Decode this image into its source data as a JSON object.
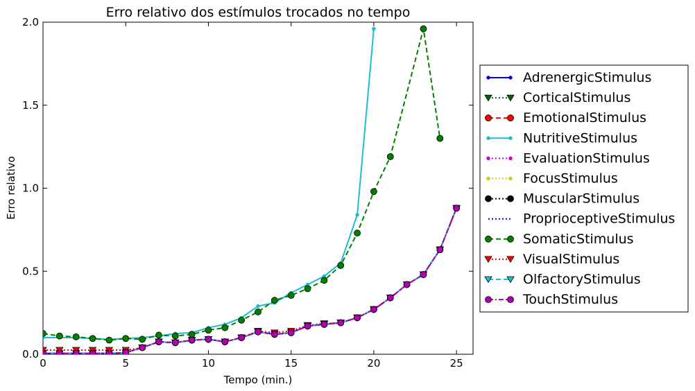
{
  "chart_data": {
    "type": "line",
    "title": "Erro relativo dos estímulos trocados no tempo",
    "xlabel": "Tempo (min.)",
    "ylabel": "Erro relativo",
    "xlim": [
      0,
      26
    ],
    "ylim": [
      0,
      2.0
    ],
    "xticks": [
      "0",
      "5",
      "10",
      "15",
      "20",
      "25"
    ],
    "yticks": [
      "0.0",
      "0.5",
      "1.0",
      "1.5",
      "2.0"
    ],
    "grid": false,
    "legend_position": "right",
    "series": [
      {
        "name": "AdrenergicStimulus",
        "color": "#0000ff",
        "dash": "solid",
        "marker": "dot",
        "x": [
          0,
          1,
          2,
          3,
          4,
          5,
          6,
          7,
          8,
          9,
          10,
          11,
          12,
          13,
          14,
          15,
          16,
          17,
          18,
          19,
          20,
          21,
          22,
          23,
          24,
          25
        ],
        "y": [
          0.005,
          0.005,
          0.005,
          0.005,
          0.005,
          0.01,
          0.04,
          0.075,
          0.07,
          0.085,
          0.09,
          0.075,
          0.1,
          0.135,
          0.12,
          0.13,
          0.17,
          0.18,
          0.19,
          0.22,
          0.27,
          0.34,
          0.42,
          0.48,
          0.63,
          0.88
        ]
      },
      {
        "name": "CorticalStimulus",
        "color": "#006400",
        "dash": "dotted",
        "marker": "triangle",
        "x": [
          0,
          1,
          2,
          3,
          4,
          5,
          6,
          7,
          8,
          9,
          10,
          11,
          12,
          13,
          14,
          15,
          16,
          17,
          18,
          19,
          20,
          21,
          22,
          23,
          24,
          25
        ],
        "y": [
          0.005,
          0.005,
          0.005,
          0.005,
          0.005,
          0.01,
          0.04,
          0.075,
          0.07,
          0.085,
          0.09,
          0.075,
          0.1,
          0.135,
          0.12,
          0.13,
          0.17,
          0.18,
          0.19,
          0.22,
          0.27,
          0.34,
          0.42,
          0.48,
          0.63,
          0.88
        ]
      },
      {
        "name": "EmotionalStimulus",
        "color": "#ff0000",
        "dash": "dashed",
        "marker": "circle",
        "x": [
          0,
          1,
          2,
          3,
          4,
          5,
          6,
          7,
          8,
          9,
          10,
          11,
          12,
          13,
          14,
          15,
          16,
          17,
          18,
          19,
          20,
          21,
          22,
          23,
          24,
          25
        ],
        "y": [
          0.005,
          0.005,
          0.005,
          0.005,
          0.005,
          0.01,
          0.04,
          0.075,
          0.07,
          0.085,
          0.09,
          0.075,
          0.1,
          0.135,
          0.12,
          0.13,
          0.17,
          0.18,
          0.19,
          0.22,
          0.27,
          0.34,
          0.42,
          0.48,
          0.63,
          0.88
        ]
      },
      {
        "name": "NutritiveStimulus",
        "color": "#17becf",
        "dash": "solid",
        "marker": "dot",
        "x": [
          0,
          1,
          2,
          3,
          4,
          5,
          6,
          7,
          8,
          9,
          10,
          11,
          12,
          13,
          14,
          15,
          16,
          17,
          18,
          19,
          20
        ],
        "y": [
          0.1,
          0.1,
          0.1,
          0.095,
          0.09,
          0.095,
          0.1,
          0.11,
          0.125,
          0.13,
          0.16,
          0.18,
          0.22,
          0.29,
          0.31,
          0.37,
          0.42,
          0.47,
          0.55,
          0.84,
          1.96
        ]
      },
      {
        "name": "EvaluationStimulus",
        "color": "#cc00cc",
        "dash": "dotted",
        "marker": "dot",
        "x": [
          0,
          1,
          2,
          3,
          4,
          5,
          6,
          7,
          8,
          9,
          10,
          11,
          12,
          13,
          14,
          15,
          16,
          17,
          18,
          19,
          20,
          21,
          22,
          23,
          24,
          25
        ],
        "y": [
          0.005,
          0.005,
          0.005,
          0.005,
          0.005,
          0.01,
          0.04,
          0.075,
          0.07,
          0.085,
          0.09,
          0.075,
          0.1,
          0.135,
          0.12,
          0.13,
          0.17,
          0.18,
          0.19,
          0.22,
          0.27,
          0.34,
          0.42,
          0.48,
          0.63,
          0.88
        ]
      },
      {
        "name": "FocusStimulus",
        "color": "#cccc00",
        "dash": "dotted",
        "marker": "dot",
        "x": [
          0,
          1,
          2,
          3,
          4,
          5,
          6,
          7,
          8,
          9,
          10,
          11,
          12,
          13,
          14,
          15,
          16,
          17,
          18,
          19,
          20,
          21,
          22,
          23,
          24,
          25
        ],
        "y": [
          0.005,
          0.005,
          0.005,
          0.005,
          0.005,
          0.01,
          0.04,
          0.075,
          0.07,
          0.085,
          0.09,
          0.075,
          0.1,
          0.135,
          0.12,
          0.13,
          0.17,
          0.18,
          0.19,
          0.22,
          0.27,
          0.34,
          0.42,
          0.48,
          0.63,
          0.88
        ]
      },
      {
        "name": "MuscularStimulus",
        "color": "#000000",
        "dash": "dotted",
        "marker": "circle",
        "x": [
          0,
          1,
          2,
          3,
          4,
          5,
          6,
          7,
          8,
          9,
          10,
          11,
          12,
          13,
          14,
          15,
          16,
          17,
          18,
          19,
          20,
          21,
          22,
          23,
          24,
          25
        ],
        "y": [
          0.005,
          0.005,
          0.005,
          0.005,
          0.005,
          0.01,
          0.04,
          0.075,
          0.07,
          0.085,
          0.09,
          0.075,
          0.1,
          0.135,
          0.12,
          0.13,
          0.17,
          0.18,
          0.19,
          0.22,
          0.27,
          0.34,
          0.42,
          0.48,
          0.63,
          0.88
        ]
      },
      {
        "name": "ProprioceptiveStimulus",
        "color": "#0000cc",
        "dash": "dotted",
        "marker": "none",
        "x": [
          0,
          1,
          2,
          3,
          4,
          5,
          6,
          7,
          8,
          9,
          10,
          11,
          12,
          13,
          14,
          15,
          16,
          17,
          18,
          19,
          20,
          21,
          22,
          23,
          24,
          25
        ],
        "y": [
          0.005,
          0.005,
          0.005,
          0.005,
          0.005,
          0.01,
          0.04,
          0.075,
          0.07,
          0.085,
          0.09,
          0.075,
          0.1,
          0.135,
          0.12,
          0.13,
          0.17,
          0.18,
          0.19,
          0.22,
          0.27,
          0.34,
          0.42,
          0.48,
          0.63,
          0.88
        ]
      },
      {
        "name": "SomaticStimulus",
        "color": "#008000",
        "dash": "dashed",
        "marker": "circle",
        "x": [
          0,
          1,
          2,
          3,
          4,
          5,
          6,
          7,
          8,
          9,
          10,
          11,
          12,
          13,
          14,
          15,
          16,
          17,
          18,
          19,
          20,
          21,
          23,
          24
        ],
        "y": [
          0.125,
          0.11,
          0.105,
          0.095,
          0.085,
          0.095,
          0.09,
          0.115,
          0.11,
          0.12,
          0.145,
          0.16,
          0.205,
          0.255,
          0.325,
          0.355,
          0.395,
          0.445,
          0.535,
          0.73,
          0.98,
          1.19,
          1.96,
          1.3
        ]
      },
      {
        "name": "VisualStimulus",
        "color": "#ff0000",
        "dash": "dotted",
        "marker": "triangle",
        "x": [
          0,
          1,
          2,
          3,
          4,
          5,
          6,
          7,
          8,
          9,
          10,
          11,
          12,
          13,
          14,
          15,
          16,
          17,
          18,
          19,
          20,
          21,
          22,
          23,
          24,
          25
        ],
        "y": [
          0.025,
          0.025,
          0.025,
          0.025,
          0.025,
          0.025,
          0.04,
          0.075,
          0.07,
          0.085,
          0.09,
          0.075,
          0.1,
          0.14,
          0.13,
          0.14,
          0.175,
          0.185,
          0.19,
          0.22,
          0.27,
          0.34,
          0.42,
          0.48,
          0.63,
          0.88
        ]
      },
      {
        "name": "OlfactoryStimulus",
        "color": "#17becf",
        "dash": "dashed",
        "marker": "triangle",
        "x": [
          0,
          1,
          2,
          3,
          4,
          5,
          6,
          7,
          8,
          9,
          10,
          11,
          12,
          13,
          14,
          15,
          16,
          17,
          18,
          19,
          20,
          21,
          22,
          23,
          24,
          25
        ],
        "y": [
          0.005,
          0.005,
          0.005,
          0.005,
          0.005,
          0.01,
          0.04,
          0.075,
          0.07,
          0.085,
          0.09,
          0.075,
          0.1,
          0.135,
          0.12,
          0.13,
          0.17,
          0.18,
          0.19,
          0.22,
          0.27,
          0.34,
          0.42,
          0.48,
          0.63,
          0.88
        ]
      },
      {
        "name": "TouchStimulus",
        "color": "#b000b0",
        "dash": "dashdot",
        "marker": "circle",
        "x": [
          0,
          1,
          2,
          3,
          4,
          5,
          6,
          7,
          8,
          9,
          10,
          11,
          12,
          13,
          14,
          15,
          16,
          17,
          18,
          19,
          20,
          21,
          22,
          23,
          24,
          25
        ],
        "y": [
          0.005,
          0.005,
          0.005,
          0.005,
          0.005,
          0.01,
          0.04,
          0.075,
          0.07,
          0.085,
          0.09,
          0.075,
          0.1,
          0.135,
          0.12,
          0.13,
          0.17,
          0.18,
          0.19,
          0.22,
          0.27,
          0.34,
          0.42,
          0.48,
          0.63,
          0.88
        ]
      }
    ]
  }
}
